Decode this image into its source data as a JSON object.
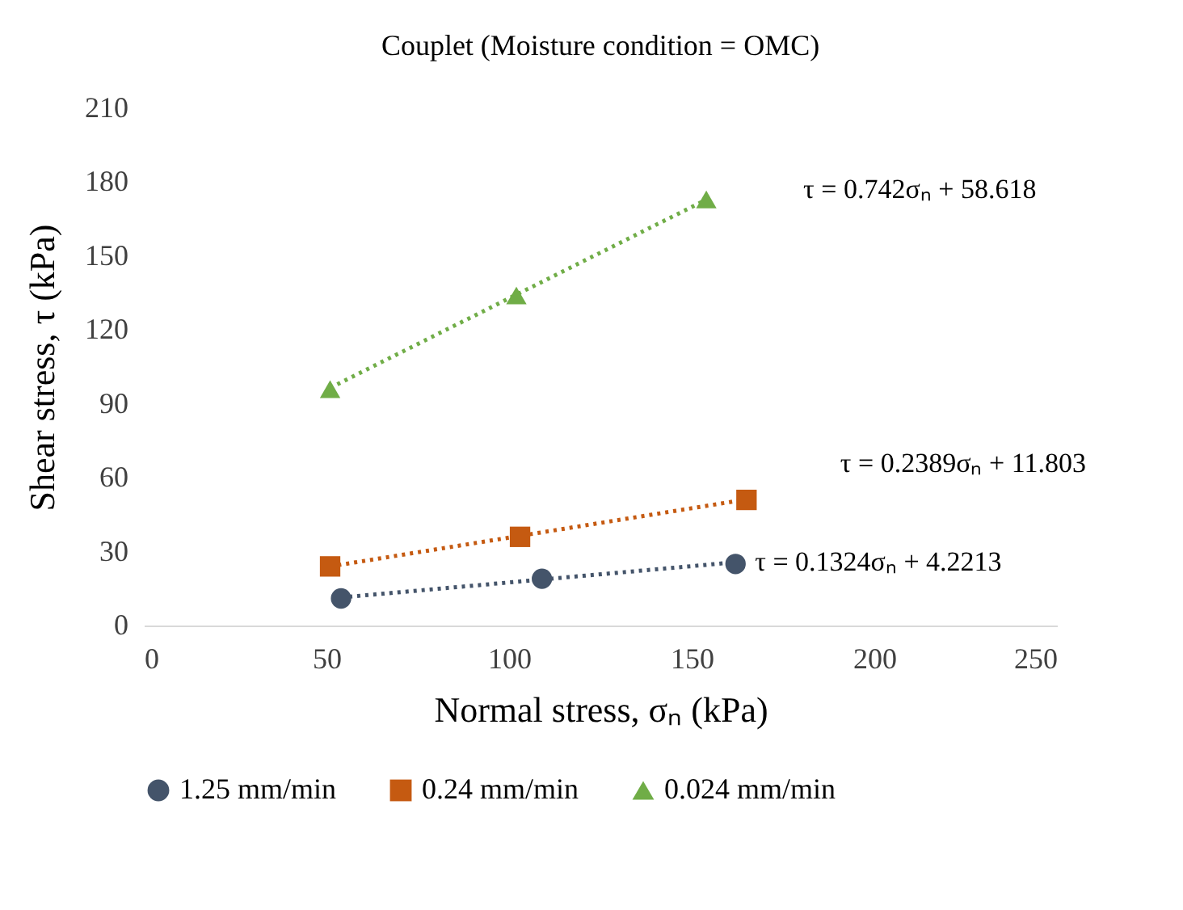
{
  "chart_data": {
    "type": "scatter",
    "title": "Couplet (Moisture condition = OMC)",
    "xlabel": "Normal stress, σₙ (kPa)",
    "ylabel": "Shear stress, τ (kPa)",
    "xlim": [
      0,
      250
    ],
    "xticks": [
      0,
      50,
      100,
      150,
      200,
      250
    ],
    "ylim": [
      0,
      210
    ],
    "yticks": [
      0,
      30,
      60,
      90,
      120,
      150,
      180,
      210
    ],
    "grid": false,
    "legend": "bottom",
    "series": [
      {
        "name": "1.25 mm/min",
        "marker": "circle",
        "color": "#44546a",
        "x": [
          54,
          109,
          162
        ],
        "values": [
          11,
          19,
          25
        ]
      },
      {
        "name": "0.24 mm/min",
        "marker": "square",
        "color": "#c55a11",
        "x": [
          51,
          103,
          165
        ],
        "values": [
          24,
          36,
          51
        ]
      },
      {
        "name": "0.024 mm/min",
        "marker": "triangle",
        "color": "#70ad47",
        "x": [
          51,
          102,
          154
        ],
        "values": [
          96,
          134,
          173
        ]
      },
      {
        "type": "line",
        "line_style": "dotted",
        "marker": "none",
        "color": "#44546a",
        "x": [
          54,
          162
        ],
        "values": [
          11.4,
          25.7
        ]
      },
      {
        "type": "line",
        "line_style": "dotted",
        "marker": "none",
        "color": "#c55a11",
        "x": [
          51,
          165
        ],
        "values": [
          24,
          51.2
        ]
      },
      {
        "type": "line",
        "line_style": "dotted",
        "marker": "none",
        "color": "#70ad47",
        "x": [
          51,
          154
        ],
        "values": [
          96.5,
          172.9
        ]
      }
    ],
    "annotations": [
      "τ = 0.1324σₙ + 4.2213",
      "τ = 0.2389σₙ + 11.803",
      "τ = 0.742σₙ + 58.618"
    ]
  }
}
